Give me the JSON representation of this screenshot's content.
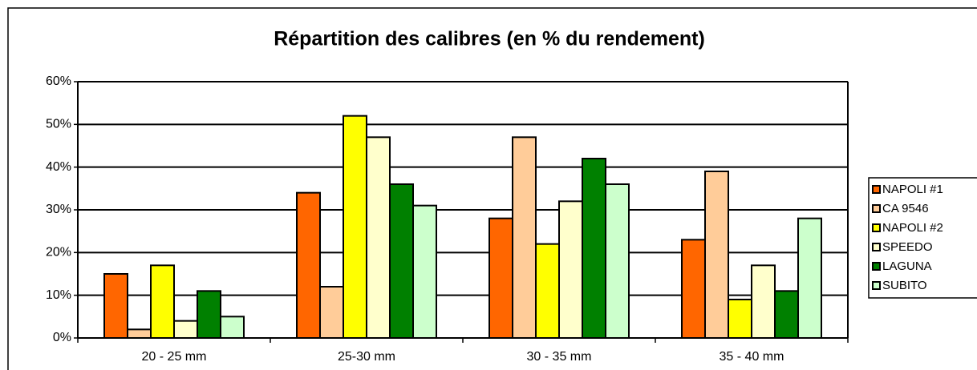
{
  "chart_data": {
    "type": "bar",
    "title": "Répartition des calibres (en % du rendement)",
    "categories": [
      "20 - 25 mm",
      "25-30 mm",
      "30 - 35 mm",
      "35 - 40 mm"
    ],
    "series": [
      {
        "name": "NAPOLI #1",
        "color": "#ff6600",
        "values": [
          15,
          34,
          28,
          23
        ]
      },
      {
        "name": "CA 9546",
        "color": "#ffcc99",
        "values": [
          2,
          12,
          47,
          39
        ]
      },
      {
        "name": "NAPOLI #2",
        "color": "#ffff00",
        "values": [
          17,
          52,
          22,
          9
        ]
      },
      {
        "name": "SPEEDO",
        "color": "#ffffcc",
        "values": [
          4,
          47,
          32,
          17
        ]
      },
      {
        "name": "LAGUNA",
        "color": "#008000",
        "values": [
          11,
          36,
          42,
          11
        ]
      },
      {
        "name": "SUBITO",
        "color": "#ccffcc",
        "values": [
          5,
          31,
          36,
          28
        ]
      }
    ],
    "ylim": [
      0,
      60
    ],
    "yticks": [
      {
        "value": 0,
        "label": "0%"
      },
      {
        "value": 10,
        "label": "10%"
      },
      {
        "value": 20,
        "label": "20%"
      },
      {
        "value": 30,
        "label": "30%"
      },
      {
        "value": 40,
        "label": "40%"
      },
      {
        "value": 50,
        "label": "50%"
      },
      {
        "value": 60,
        "label": "60%"
      }
    ],
    "grid": true,
    "legend": "right"
  }
}
